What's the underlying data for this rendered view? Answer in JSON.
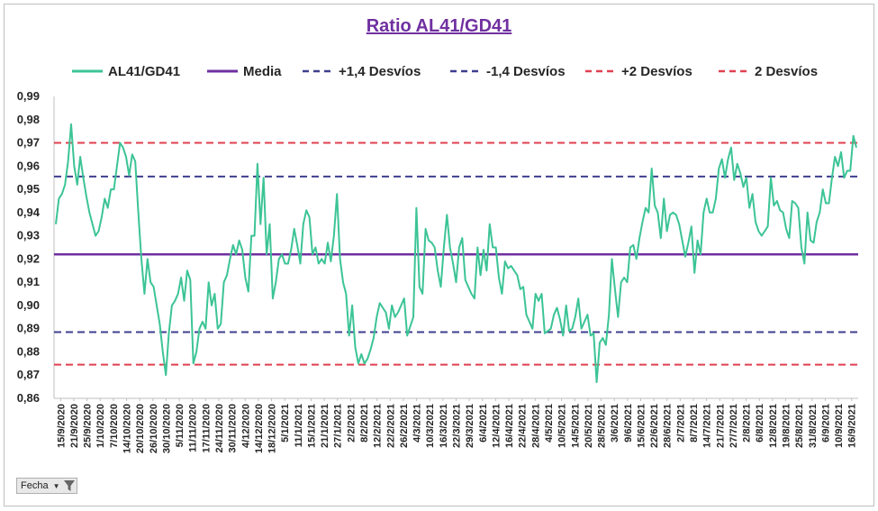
{
  "chart_data": {
    "type": "line",
    "title": "Ratio AL41/GD41",
    "xlabel": "",
    "ylabel": "",
    "ylim": [
      0.86,
      0.99
    ],
    "y_ticks": [
      "0,86",
      "0,87",
      "0,88",
      "0,89",
      "0,90",
      "0,91",
      "0,92",
      "0,93",
      "0,94",
      "0,95",
      "0,96",
      "0,97",
      "0,98",
      "0,99"
    ],
    "x_labels": [
      "15/9/2020",
      "21/9/2020",
      "25/9/2020",
      "1/10/2020",
      "7/10/2020",
      "14/10/2020",
      "20/10/2020",
      "26/10/2020",
      "30/10/2020",
      "5/11/2020",
      "11/11/2020",
      "17/11/2020",
      "24/11/2020",
      "30/11/2020",
      "4/12/2020",
      "14/12/2020",
      "18/12/2020",
      "5/1/2021",
      "11/1/2021",
      "15/1/2021",
      "21/1/2021",
      "27/1/2021",
      "2/2/2021",
      "8/2/2021",
      "12/2/2021",
      "22/2/2021",
      "26/2/2021",
      "4/3/2021",
      "10/3/2021",
      "16/3/2021",
      "22/3/2021",
      "29/3/2021",
      "6/4/2021",
      "12/4/2021",
      "16/4/2021",
      "22/4/2021",
      "28/4/2021",
      "4/5/2021",
      "10/5/2021",
      "14/5/2021",
      "20/5/2021",
      "28/5/2021",
      "3/6/2021",
      "9/6/2021",
      "15/6/2021",
      "22/6/2021",
      "28/6/2021",
      "2/7/2021",
      "8/7/2021",
      "14/7/2021",
      "21/7/2021",
      "27/7/2021",
      "2/8/2021",
      "6/8/2021",
      "12/8/2021",
      "19/8/2021",
      "25/8/2021",
      "31/8/2021",
      "6/9/2021",
      "10/9/2021",
      "16/9/2021"
    ],
    "grid": false,
    "legend_position": "top",
    "series": [
      {
        "name": "AL41/GD41",
        "color": "#3cc495",
        "style": "solid",
        "values": [
          0.935,
          0.946,
          0.948,
          0.952,
          0.962,
          0.978,
          0.96,
          0.952,
          0.964,
          0.955,
          0.947,
          0.94,
          0.935,
          0.93,
          0.932,
          0.938,
          0.946,
          0.942,
          0.95,
          0.95,
          0.96,
          0.97,
          0.968,
          0.964,
          0.956,
          0.965,
          0.962,
          0.94,
          0.92,
          0.905,
          0.92,
          0.91,
          0.908,
          0.9,
          0.892,
          0.88,
          0.87,
          0.888,
          0.9,
          0.902,
          0.905,
          0.912,
          0.902,
          0.915,
          0.911,
          0.875,
          0.88,
          0.89,
          0.893,
          0.89,
          0.91,
          0.9,
          0.905,
          0.89,
          0.892,
          0.91,
          0.913,
          0.92,
          0.926,
          0.922,
          0.928,
          0.924,
          0.912,
          0.906,
          0.93,
          0.93,
          0.961,
          0.935,
          0.955,
          0.922,
          0.935,
          0.903,
          0.91,
          0.92,
          0.922,
          0.918,
          0.918,
          0.924,
          0.933,
          0.926,
          0.918,
          0.935,
          0.941,
          0.938,
          0.922,
          0.925,
          0.918,
          0.92,
          0.918,
          0.927,
          0.919,
          0.93,
          0.948,
          0.92,
          0.91,
          0.905,
          0.887,
          0.9,
          0.882,
          0.875,
          0.879,
          0.875,
          0.877,
          0.881,
          0.886,
          0.895,
          0.901,
          0.899,
          0.897,
          0.89,
          0.9,
          0.895,
          0.897,
          0.9,
          0.903,
          0.887,
          0.891,
          0.895,
          0.942,
          0.908,
          0.905,
          0.933,
          0.928,
          0.927,
          0.925,
          0.915,
          0.908,
          0.925,
          0.939,
          0.925,
          0.918,
          0.91,
          0.925,
          0.929,
          0.911,
          0.908,
          0.905,
          0.903,
          0.925,
          0.913,
          0.924,
          0.915,
          0.935,
          0.925,
          0.925,
          0.912,
          0.905,
          0.919,
          0.916,
          0.917,
          0.915,
          0.913,
          0.907,
          0.908,
          0.896,
          0.893,
          0.89,
          0.905,
          0.902,
          0.905,
          0.888,
          0.889,
          0.89,
          0.896,
          0.899,
          0.894,
          0.887,
          0.9,
          0.889,
          0.89,
          0.895,
          0.903,
          0.89,
          0.893,
          0.896,
          0.887,
          0.888,
          0.867,
          0.884,
          0.886,
          0.883,
          0.896,
          0.92,
          0.907,
          0.895,
          0.91,
          0.912,
          0.91,
          0.925,
          0.926,
          0.92,
          0.929,
          0.936,
          0.942,
          0.94,
          0.959,
          0.943,
          0.94,
          0.929,
          0.946,
          0.932,
          0.939,
          0.94,
          0.939,
          0.935,
          0.928,
          0.921,
          0.927,
          0.934,
          0.914,
          0.928,
          0.922,
          0.94,
          0.946,
          0.94,
          0.94,
          0.946,
          0.959,
          0.963,
          0.955,
          0.963,
          0.968,
          0.954,
          0.961,
          0.957,
          0.951,
          0.955,
          0.942,
          0.948,
          0.936,
          0.932,
          0.93,
          0.932,
          0.934,
          0.955,
          0.943,
          0.945,
          0.941,
          0.94,
          0.933,
          0.929,
          0.945,
          0.944,
          0.942,
          0.925,
          0.918,
          0.94,
          0.928,
          0.927,
          0.936,
          0.94,
          0.95,
          0.944,
          0.944,
          0.955,
          0.964,
          0.96,
          0.966,
          0.955,
          0.958,
          0.958,
          0.973,
          0.968
        ]
      },
      {
        "name": "Media",
        "color": "#7030a0",
        "style": "solid",
        "value": 0.922
      },
      {
        "name": "+1,4 Desvíos",
        "color": "#3f3f8f",
        "style": "dashed",
        "value": 0.9555
      },
      {
        "name": "-1,4 Desvíos",
        "color": "#3f3f8f",
        "style": "dashed",
        "value": 0.8885
      },
      {
        "name": "+2 Desvíos",
        "color": "#e04050",
        "style": "dashed",
        "value": 0.97
      },
      {
        "name": "2 Desvíos",
        "color": "#e04050",
        "style": "dashed",
        "value": 0.8745
      }
    ]
  },
  "legend": [
    {
      "label": "AL41/GD41"
    },
    {
      "label": "Media"
    },
    {
      "label": "+1,4 Desvíos"
    },
    {
      "label": "-1,4 Desvíos"
    },
    {
      "label": "+2 Desvíos"
    },
    {
      "label": "2 Desvíos"
    }
  ],
  "filter_button": {
    "label": "Fecha"
  }
}
